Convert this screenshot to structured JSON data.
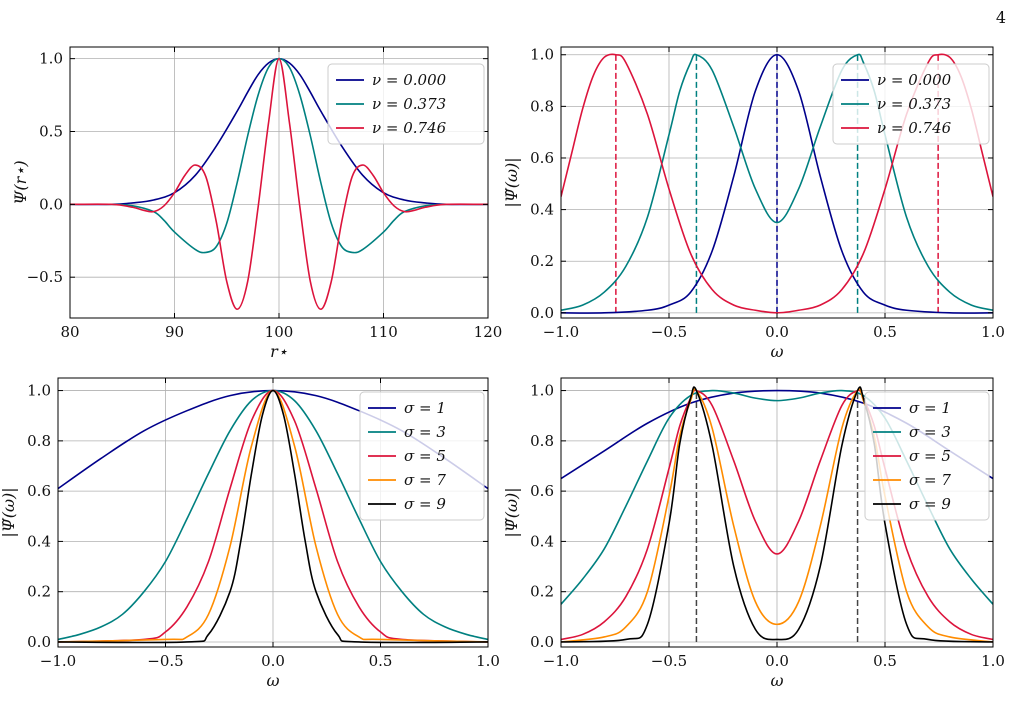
{
  "page_number": "4",
  "colors": {
    "navy": "#00008b",
    "teal": "#008080",
    "crimson": "#dc143c",
    "orange": "#ff8c00",
    "black": "#000000"
  },
  "chart_data": [
    {
      "id": "top-left",
      "type": "line",
      "xlabel": "r⋆",
      "ylabel": "Ψ(r⋆)",
      "xlim": [
        80,
        120
      ],
      "ylim": [
        -0.78,
        1.08
      ],
      "xticks": [
        80,
        90,
        100,
        110,
        120
      ],
      "xtick_labels": [
        "80",
        "90",
        "100",
        "110",
        "120"
      ],
      "yticks": [
        -0.5,
        0,
        0.5,
        1.0
      ],
      "ytick_labels": [
        "−0.5",
        "0.0",
        "0.5",
        "1.0"
      ],
      "grid": true,
      "legend_position": "top-right",
      "series": [
        {
          "name": "ν = 0.000",
          "color": "#00008b",
          "x": [
            80,
            84,
            86,
            88,
            90,
            92,
            94,
            96,
            97,
            98,
            99,
            100,
            101,
            102,
            103,
            104,
            106,
            108,
            110,
            112,
            114,
            116,
            120
          ],
          "y": [
            0,
            0,
            0.01,
            0.03,
            0.08,
            0.2,
            0.4,
            0.64,
            0.77,
            0.89,
            0.97,
            1.0,
            0.97,
            0.89,
            0.77,
            0.64,
            0.4,
            0.2,
            0.08,
            0.03,
            0.01,
            0,
            0
          ]
        },
        {
          "name": "ν = 0.373",
          "color": "#008080",
          "x": [
            80,
            84,
            86,
            88,
            89,
            90,
            92,
            93,
            94,
            95,
            96,
            97,
            98,
            99,
            100,
            101,
            102,
            103,
            104,
            105,
            106,
            107,
            108,
            110,
            111,
            112,
            114,
            116,
            120
          ],
          "y": [
            0,
            0,
            -0.01,
            -0.05,
            -0.11,
            -0.19,
            -0.31,
            -0.33,
            -0.29,
            -0.13,
            0.15,
            0.47,
            0.75,
            0.94,
            1.0,
            0.94,
            0.75,
            0.47,
            0.15,
            -0.13,
            -0.29,
            -0.33,
            -0.31,
            -0.19,
            -0.11,
            -0.05,
            -0.01,
            0,
            0
          ]
        },
        {
          "name": "ν = 0.746",
          "color": "#dc143c",
          "x": [
            80,
            84,
            86,
            87,
            88,
            89,
            90,
            91,
            92,
            93,
            94,
            95,
            96,
            97,
            98,
            99,
            100,
            101,
            102,
            103,
            104,
            105,
            106,
            107,
            108,
            109,
            110,
            111,
            112,
            113,
            114,
            116,
            120
          ],
          "y": [
            0,
            0,
            -0.02,
            -0.04,
            -0.05,
            -0.01,
            0.08,
            0.2,
            0.27,
            0.19,
            -0.12,
            -0.53,
            -0.72,
            -0.53,
            -0.02,
            0.56,
            1.0,
            0.56,
            -0.02,
            -0.53,
            -0.72,
            -0.53,
            -0.12,
            0.19,
            0.27,
            0.2,
            0.08,
            -0.01,
            -0.05,
            -0.04,
            -0.02,
            0,
            0
          ]
        }
      ]
    },
    {
      "id": "top-right",
      "type": "line",
      "xlabel": "ω",
      "ylabel": "|Ψ̃(ω)|",
      "xlim": [
        -1,
        1
      ],
      "ylim": [
        -0.02,
        1.03
      ],
      "xticks": [
        -1,
        -0.5,
        0,
        0.5,
        1
      ],
      "xtick_labels": [
        "−1.0",
        "−0.5",
        "0.0",
        "0.5",
        "1.0"
      ],
      "yticks": [
        0,
        0.2,
        0.4,
        0.6,
        0.8,
        1.0
      ],
      "ytick_labels": [
        "0.0",
        "0.2",
        "0.4",
        "0.6",
        "0.8",
        "1.0"
      ],
      "grid": true,
      "legend_position": "top-right",
      "dashed_lines": [
        {
          "x": -0.746,
          "color": "#dc143c"
        },
        {
          "x": -0.373,
          "color": "#008080"
        },
        {
          "x": 0.0,
          "color": "#00008b"
        },
        {
          "x": 0.373,
          "color": "#008080"
        },
        {
          "x": 0.746,
          "color": "#dc143c"
        }
      ],
      "series": [
        {
          "name": "ν = 0.000",
          "color": "#00008b",
          "x": [
            -1,
            -0.8,
            -0.6,
            -0.5,
            -0.4,
            -0.3,
            -0.2,
            -0.1,
            0,
            0.1,
            0.2,
            0.3,
            0.4,
            0.5,
            0.6,
            0.8,
            1
          ],
          "y": [
            0,
            0,
            0.01,
            0.03,
            0.08,
            0.24,
            0.53,
            0.86,
            1.0,
            0.86,
            0.53,
            0.24,
            0.08,
            0.03,
            0.01,
            0,
            0
          ]
        },
        {
          "name": "ν = 0.373",
          "color": "#008080",
          "x": [
            -1,
            -0.9,
            -0.8,
            -0.7,
            -0.6,
            -0.5,
            -0.45,
            -0.4,
            -0.373,
            -0.3,
            -0.2,
            -0.1,
            0,
            0.1,
            0.2,
            0.3,
            0.373,
            0.4,
            0.45,
            0.5,
            0.6,
            0.7,
            0.8,
            0.9,
            1
          ],
          "y": [
            0.01,
            0.03,
            0.08,
            0.18,
            0.37,
            0.69,
            0.86,
            0.97,
            1.0,
            0.94,
            0.72,
            0.48,
            0.35,
            0.48,
            0.72,
            0.94,
            1.0,
            0.97,
            0.86,
            0.69,
            0.37,
            0.18,
            0.08,
            0.03,
            0.01
          ]
        },
        {
          "name": "ν = 0.746",
          "color": "#dc143c",
          "x": [
            -1,
            -0.95,
            -0.9,
            -0.85,
            -0.8,
            -0.746,
            -0.7,
            -0.6,
            -0.5,
            -0.4,
            -0.3,
            -0.2,
            -0.1,
            0,
            0.1,
            0.2,
            0.3,
            0.4,
            0.5,
            0.6,
            0.7,
            0.746,
            0.8,
            0.85,
            0.9,
            0.95,
            1
          ],
          "y": [
            0.45,
            0.62,
            0.79,
            0.92,
            0.99,
            1.0,
            0.97,
            0.77,
            0.48,
            0.23,
            0.09,
            0.03,
            0.01,
            0,
            0.01,
            0.03,
            0.09,
            0.23,
            0.48,
            0.77,
            0.97,
            1.0,
            0.99,
            0.92,
            0.79,
            0.62,
            0.45
          ]
        }
      ]
    },
    {
      "id": "bottom-left",
      "type": "line",
      "xlabel": "ω",
      "ylabel": "|Ψ̃(ω)|",
      "xlim": [
        -1,
        1
      ],
      "ylim": [
        -0.02,
        1.05
      ],
      "xticks": [
        -1,
        -0.5,
        0,
        0.5,
        1
      ],
      "xtick_labels": [
        "−1.0",
        "−0.5",
        "0.0",
        "0.5",
        "1.0"
      ],
      "yticks": [
        0,
        0.2,
        0.4,
        0.6,
        0.8,
        1.0
      ],
      "ytick_labels": [
        "0.0",
        "0.2",
        "0.4",
        "0.6",
        "0.8",
        "1.0"
      ],
      "grid": true,
      "legend_position": "top-right",
      "series": [
        {
          "name": "σ = 1",
          "color": "#00008b",
          "x": [
            -1,
            -0.8,
            -0.6,
            -0.4,
            -0.2,
            0,
            0.2,
            0.4,
            0.6,
            0.8,
            1
          ],
          "y": [
            0.61,
            0.73,
            0.84,
            0.92,
            0.98,
            1.0,
            0.98,
            0.92,
            0.84,
            0.73,
            0.61
          ]
        },
        {
          "name": "σ = 3",
          "color": "#008080",
          "x": [
            -1,
            -0.9,
            -0.8,
            -0.7,
            -0.6,
            -0.5,
            -0.4,
            -0.3,
            -0.2,
            -0.1,
            0,
            0.1,
            0.2,
            0.3,
            0.4,
            0.5,
            0.6,
            0.7,
            0.8,
            0.9,
            1
          ],
          "y": [
            0.01,
            0.03,
            0.06,
            0.11,
            0.2,
            0.32,
            0.49,
            0.67,
            0.84,
            0.96,
            1.0,
            0.96,
            0.84,
            0.67,
            0.49,
            0.32,
            0.2,
            0.11,
            0.06,
            0.03,
            0.01
          ]
        },
        {
          "name": "σ = 5",
          "color": "#dc143c",
          "x": [
            -1,
            -0.6,
            -0.5,
            -0.4,
            -0.3,
            -0.2,
            -0.1,
            0,
            0.1,
            0.2,
            0.3,
            0.4,
            0.5,
            0.6,
            1
          ],
          "y": [
            0,
            0.01,
            0.04,
            0.14,
            0.32,
            0.61,
            0.88,
            1.0,
            0.88,
            0.61,
            0.32,
            0.14,
            0.04,
            0.01,
            0
          ]
        },
        {
          "name": "σ = 7",
          "color": "#ff8c00",
          "x": [
            -1,
            -0.5,
            -0.4,
            -0.3,
            -0.2,
            -0.1,
            0,
            0.1,
            0.2,
            0.3,
            0.4,
            0.5,
            1
          ],
          "y": [
            0,
            0.01,
            0.02,
            0.11,
            0.38,
            0.78,
            1.0,
            0.78,
            0.38,
            0.11,
            0.02,
            0.01,
            0
          ]
        },
        {
          "name": "σ = 9",
          "color": "#000000",
          "x": [
            -1,
            -0.4,
            -0.3,
            -0.2,
            -0.15,
            -0.1,
            -0.05,
            0,
            0.05,
            0.1,
            0.15,
            0.2,
            0.3,
            0.4,
            1
          ],
          "y": [
            0,
            0,
            0.03,
            0.2,
            0.4,
            0.67,
            0.9,
            1.0,
            0.9,
            0.67,
            0.4,
            0.2,
            0.03,
            0,
            0
          ]
        }
      ]
    },
    {
      "id": "bottom-right",
      "type": "line",
      "xlabel": "ω",
      "ylabel": "|Ψ̃(ω)|",
      "xlim": [
        -1,
        1
      ],
      "ylim": [
        -0.02,
        1.05
      ],
      "xticks": [
        -1,
        -0.5,
        0,
        0.5,
        1
      ],
      "xtick_labels": [
        "−1.0",
        "−0.5",
        "0.0",
        "0.5",
        "1.0"
      ],
      "yticks": [
        0,
        0.2,
        0.4,
        0.6,
        0.8,
        1.0
      ],
      "ytick_labels": [
        "0.0",
        "0.2",
        "0.4",
        "0.6",
        "0.8",
        "1.0"
      ],
      "grid": true,
      "legend_position": "top-right",
      "dashed_lines": [
        {
          "x": -0.373,
          "color": "#444444"
        },
        {
          "x": 0.373,
          "color": "#444444"
        }
      ],
      "series": [
        {
          "name": "σ = 1",
          "color": "#00008b",
          "x": [
            -1,
            -0.8,
            -0.6,
            -0.4,
            -0.2,
            0,
            0.2,
            0.4,
            0.6,
            0.8,
            1
          ],
          "y": [
            0.65,
            0.76,
            0.87,
            0.95,
            0.99,
            1.0,
            0.99,
            0.95,
            0.87,
            0.76,
            0.65
          ]
        },
        {
          "name": "σ = 3",
          "color": "#008080",
          "x": [
            -1,
            -0.9,
            -0.8,
            -0.7,
            -0.6,
            -0.5,
            -0.4,
            -0.3,
            -0.2,
            -0.1,
            0,
            0.1,
            0.2,
            0.3,
            0.4,
            0.5,
            0.6,
            0.7,
            0.8,
            0.9,
            1
          ],
          "y": [
            0.15,
            0.25,
            0.37,
            0.54,
            0.72,
            0.89,
            0.98,
            1.0,
            0.99,
            0.97,
            0.96,
            0.97,
            0.99,
            1.0,
            0.98,
            0.89,
            0.72,
            0.54,
            0.37,
            0.25,
            0.15
          ]
        },
        {
          "name": "σ = 5",
          "color": "#dc143c",
          "x": [
            -1,
            -0.9,
            -0.8,
            -0.7,
            -0.6,
            -0.5,
            -0.45,
            -0.4,
            -0.373,
            -0.3,
            -0.2,
            -0.1,
            0,
            0.1,
            0.2,
            0.3,
            0.373,
            0.4,
            0.45,
            0.5,
            0.6,
            0.7,
            0.8,
            0.9,
            1
          ],
          "y": [
            0.01,
            0.03,
            0.08,
            0.18,
            0.37,
            0.69,
            0.86,
            0.97,
            1.0,
            0.94,
            0.72,
            0.48,
            0.35,
            0.48,
            0.72,
            0.94,
            1.0,
            0.97,
            0.86,
            0.69,
            0.37,
            0.18,
            0.08,
            0.03,
            0.01
          ]
        },
        {
          "name": "σ = 7",
          "color": "#ff8c00",
          "x": [
            -1,
            -0.8,
            -0.7,
            -0.6,
            -0.5,
            -0.45,
            -0.4,
            -0.373,
            -0.3,
            -0.2,
            -0.1,
            0,
            0.1,
            0.2,
            0.3,
            0.373,
            0.4,
            0.45,
            0.5,
            0.6,
            0.7,
            0.8,
            1
          ],
          "y": [
            0,
            0.02,
            0.06,
            0.2,
            0.58,
            0.82,
            0.96,
            1.0,
            0.85,
            0.46,
            0.16,
            0.07,
            0.16,
            0.46,
            0.85,
            1.0,
            0.96,
            0.82,
            0.58,
            0.2,
            0.06,
            0.02,
            0
          ]
        },
        {
          "name": "σ = 9",
          "color": "#000000",
          "x": [
            -1,
            -0.7,
            -0.6,
            -0.5,
            -0.45,
            -0.4,
            -0.373,
            -0.3,
            -0.2,
            -0.1,
            0,
            0.1,
            0.2,
            0.3,
            0.373,
            0.4,
            0.45,
            0.5,
            0.6,
            0.7,
            1
          ],
          "y": [
            0,
            0.01,
            0.07,
            0.47,
            0.79,
            0.97,
            1.0,
            0.78,
            0.3,
            0.05,
            0.01,
            0.05,
            0.3,
            0.78,
            1.0,
            0.97,
            0.79,
            0.47,
            0.07,
            0.01,
            0
          ]
        }
      ]
    }
  ]
}
